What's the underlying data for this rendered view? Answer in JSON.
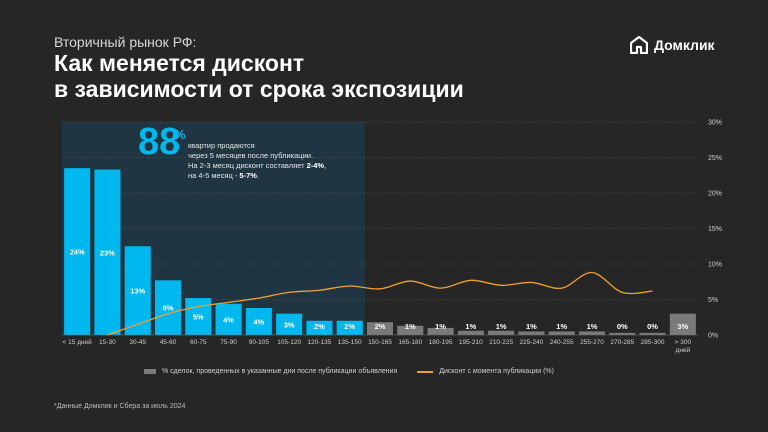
{
  "header": {
    "subtitle": "Вторичный рынок РФ:",
    "title_line1": "Как меняется дисконт",
    "title_line2": "в зависимости от срока экспозиции"
  },
  "brand": {
    "name": "Домклик",
    "icon": "domclick-logo-icon"
  },
  "callout": {
    "number": "88",
    "unit": "%",
    "line1": "квартир продаются",
    "line2": "через 5 месяцев после публикации.",
    "line3_prefix": "На 2-3 месяц дисконт составляет ",
    "line3_value": "2-4%",
    "line3_suffix": ",",
    "line4_prefix": "на 4-5 месяц - ",
    "line4_value": "5-7%",
    "line4_suffix": "."
  },
  "legend": {
    "bars_label": "% сделок, проведенных в указанные дни после публикации объявления",
    "line_label": "Дисконт с момента публикации (%)"
  },
  "footnote": "*Данные Домклик и Сбера за июль 2024",
  "colors": {
    "background": "#262626",
    "bar_highlight": "#00b8f0",
    "bar_muted": "#7a7a7a",
    "line": "#f0a030",
    "highlight_region": "#1e3a48"
  },
  "chart_data": {
    "type": "bar",
    "categories": [
      "< 15 дней",
      "15-30",
      "30-45",
      "45-60",
      "60-75",
      "75-90",
      "90-105",
      "105-120",
      "120-135",
      "135-150",
      "150-165",
      "165-180",
      "180-195",
      "195-210",
      "210-225",
      "225-240",
      "240-255",
      "255-270",
      "270-285",
      "285-300",
      "> 300 дней"
    ],
    "series": [
      {
        "name": "% сделок, проведенных в указанные дни после публикации объявления",
        "type": "bar",
        "values": [
          23.5,
          23.3,
          12.5,
          7.7,
          5.2,
          4.4,
          3.8,
          3.0,
          2.0,
          2.0,
          1.8,
          1.3,
          1.0,
          0.6,
          0.6,
          0.5,
          0.5,
          0.5,
          0.3,
          0.3,
          3.0
        ],
        "labels": [
          "24%",
          "23%",
          "13%",
          "8%",
          "5%",
          "4%",
          "4%",
          "3%",
          "2%",
          "2%",
          "2%",
          "1%",
          "1%",
          "1%",
          "1%",
          "1%",
          "1%",
          "1%",
          "0%",
          "0%",
          "3%"
        ],
        "highlighted_count": 10
      },
      {
        "name": "Дисконт с момента публикации (%)",
        "type": "line",
        "values": [
          null,
          0.0,
          1.5,
          3.0,
          4.0,
          4.6,
          5.2,
          6.0,
          6.3,
          6.9,
          6.5,
          7.6,
          6.6,
          7.7,
          7.0,
          7.4,
          6.6,
          8.8,
          6.0,
          6.2,
          null
        ]
      }
    ],
    "ylim": [
      0,
      30
    ],
    "yticks": [
      "0%",
      "5%",
      "10%",
      "15%",
      "20%",
      "25%",
      "30%"
    ],
    "y_axis_position": "right",
    "grid": true,
    "legend_position": "bottom"
  }
}
